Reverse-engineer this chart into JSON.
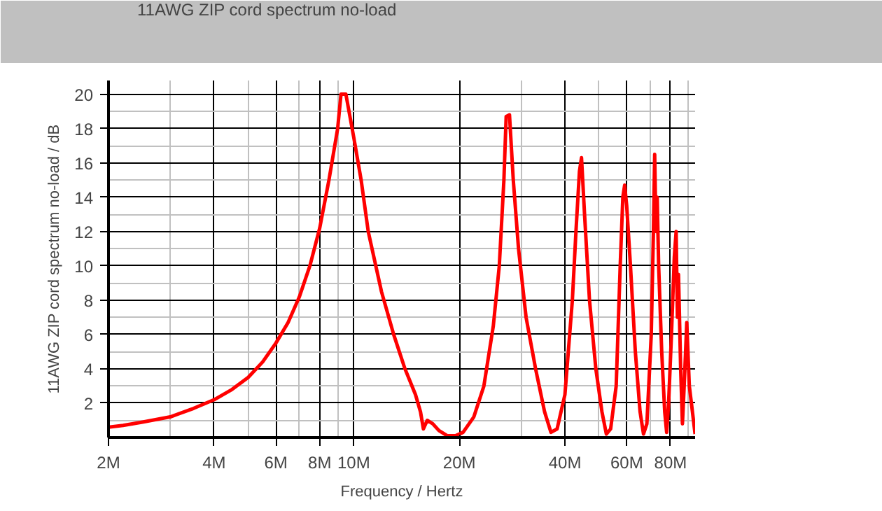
{
  "chart_data": {
    "type": "line",
    "xlabel": "Frequency / Hertz",
    "ylabel": "11AWG ZIP cord spectrum no-load / dB",
    "log": "x",
    "grid": true,
    "legend": "top",
    "line_style": "solid",
    "marker": "none",
    "xlim": [
      2000000,
      94000000
    ],
    "ylim": [
      0,
      20.8
    ],
    "xticks": [
      {
        "value": 2000000,
        "label": "2M"
      },
      {
        "value": 4000000,
        "label": "4M"
      },
      {
        "value": 6000000,
        "label": "6M"
      },
      {
        "value": 8000000,
        "label": "8M"
      },
      {
        "value": 10000000,
        "label": "10M"
      },
      {
        "value": 20000000,
        "label": "20M"
      },
      {
        "value": 40000000,
        "label": "40M"
      },
      {
        "value": 60000000,
        "label": "60M"
      },
      {
        "value": 80000000,
        "label": "80M"
      }
    ],
    "yticks": [
      2,
      4,
      6,
      8,
      10,
      12,
      14,
      16,
      18,
      20
    ],
    "series": [
      {
        "name": "11AWG ZIP cord spectrum no-load",
        "color": "#ff0000",
        "x": [
          2000000,
          2200000,
          2500000,
          3000000,
          3500000,
          4000000,
          4500000,
          5000000,
          5500000,
          6000000,
          6500000,
          7000000,
          7500000,
          8000000,
          8500000,
          9000000,
          9200000,
          9500000,
          10000000,
          10500000,
          11000000,
          12000000,
          13000000,
          14000000,
          15000000,
          15500000,
          15800000,
          16200000,
          16800000,
          17500000,
          18500000,
          19500000,
          20500000,
          22000000,
          23500000,
          25000000,
          26000000,
          26800000,
          27200000,
          27800000,
          28500000,
          29500000,
          31000000,
          33000000,
          35000000,
          36500000,
          38000000,
          40000000,
          42000000,
          43000000,
          44000000,
          44600000,
          45500000,
          47000000,
          49000000,
          51000000,
          52500000,
          54000000,
          56000000,
          57500000,
          58500000,
          59200000,
          60000000,
          61500000,
          63500000,
          65500000,
          67000000,
          68500000,
          70500000,
          71500000,
          72100000,
          72700000,
          73300000,
          74000000,
          75500000,
          77000000,
          78000000,
          79000000,
          80500000,
          82000000,
          83000000,
          83700000,
          84300000,
          85500000,
          86500000,
          87500000,
          89000000,
          90500000,
          92000000,
          94000000
        ],
        "values": [
          0.6,
          0.7,
          0.9,
          1.2,
          1.7,
          2.2,
          2.8,
          3.5,
          4.4,
          5.5,
          6.7,
          8.2,
          10.0,
          12.2,
          15.0,
          18.0,
          20.0,
          20.0,
          17.5,
          15.0,
          12.0,
          8.5,
          6.0,
          4.0,
          2.5,
          1.5,
          0.5,
          1.0,
          0.8,
          0.4,
          0.1,
          0.1,
          0.3,
          1.2,
          3.0,
          6.5,
          10.0,
          15.0,
          18.7,
          18.8,
          15.0,
          11.0,
          7.0,
          4.0,
          1.5,
          0.3,
          0.5,
          2.5,
          8.0,
          12.0,
          15.5,
          16.3,
          13.0,
          8.0,
          4.0,
          1.5,
          0.2,
          0.5,
          3.0,
          10.0,
          14.0,
          14.7,
          13.5,
          10.0,
          5.0,
          1.5,
          0.2,
          0.8,
          6.0,
          12.0,
          16.5,
          12.0,
          14.0,
          10.0,
          5.0,
          1.5,
          0.3,
          2.0,
          6.0,
          10.5,
          12.0,
          7.0,
          9.5,
          4.0,
          0.8,
          3.0,
          6.7,
          3.0,
          1.8,
          0.2
        ]
      }
    ]
  }
}
